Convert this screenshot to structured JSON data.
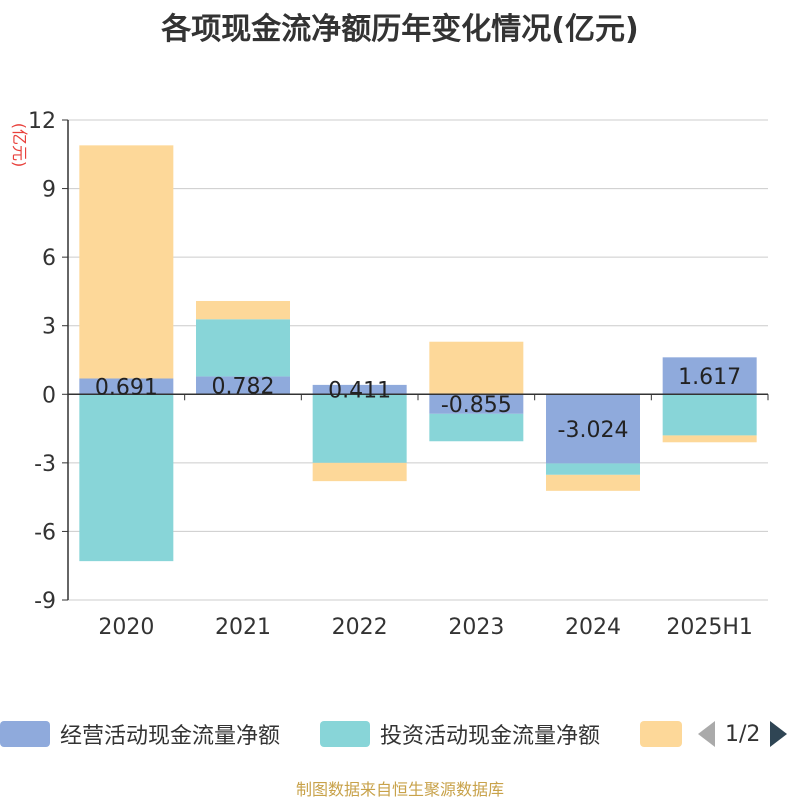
{
  "title": "各项现金流净额历年变化情况(亿元)",
  "chart_data": {
    "type": "bar",
    "stacked": true,
    "unit_label": "(亿元)",
    "categories": [
      "2020",
      "2021",
      "2022",
      "2023",
      "2024",
      "2025H1"
    ],
    "ylim": [
      -9,
      12
    ],
    "yticks": [
      12,
      9,
      6,
      3,
      0,
      -3,
      -6,
      -9
    ],
    "grid": true,
    "series": [
      {
        "name": "经营活动现金流量净额",
        "color": "#8faadc",
        "values": [
          0.691,
          0.782,
          0.411,
          -0.855,
          -3.024,
          1.617
        ]
      },
      {
        "name": "投资活动现金流量净额",
        "color": "#88d5d8",
        "values": [
          -7.3,
          2.5,
          -3.0,
          -1.2,
          -0.5,
          -1.8
        ]
      },
      {
        "name": "",
        "color": "#fdd899",
        "values": [
          10.2,
          0.8,
          -0.8,
          2.3,
          -0.7,
          -0.3
        ]
      }
    ],
    "data_labels": [
      "0.691",
      "0.782",
      "0.411",
      "-0.855",
      "-3.024",
      "1.617"
    ],
    "legend_position": "bottom"
  },
  "legend": {
    "items": [
      {
        "label": "经营活动现金流量净额",
        "color": "#8faadc"
      },
      {
        "label": "投资活动现金流量净额",
        "color": "#88d5d8"
      },
      {
        "label": "",
        "color": "#fdd899"
      }
    ],
    "page": "1/2"
  },
  "footer": "制图数据来自恒生聚源数据库"
}
